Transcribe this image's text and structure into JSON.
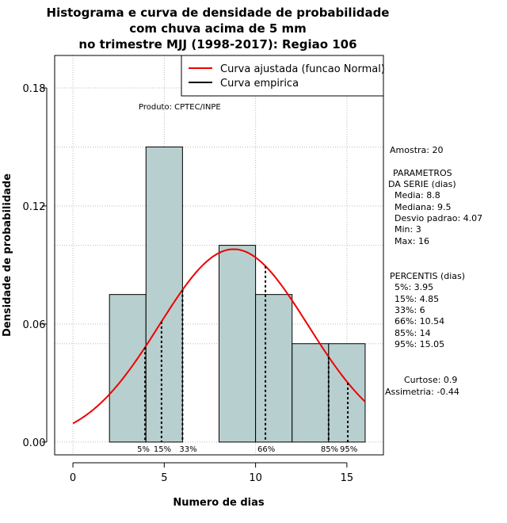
{
  "chart_data": {
    "type": "histogram",
    "title_lines": [
      "Histograma e curva de densidade de probabilidade",
      "com chuva acima de 5 mm",
      "no trimestre MJJ (1998-2017): Regiao 106"
    ],
    "xlabel": "Numero de dias",
    "ylabel": "Densidade de probabilidade",
    "xlim": [
      -1,
      17
    ],
    "ylim": [
      -0.0065,
      0.1965
    ],
    "x_ticks": [
      0,
      5,
      10,
      15
    ],
    "y_ticks": [
      0.0,
      0.06,
      0.12,
      0.18
    ],
    "y_tick_labels": [
      "0.00",
      "0.06",
      "0.12",
      "0.18"
    ],
    "bins": [
      {
        "start": 2,
        "end": 4,
        "density": 0.075
      },
      {
        "start": 4,
        "end": 6,
        "density": 0.15
      },
      {
        "start": 6,
        "end": 8,
        "density": 0.0
      },
      {
        "start": 8,
        "end": 10,
        "density": 0.1
      },
      {
        "start": 10,
        "end": 12,
        "density": 0.075
      },
      {
        "start": 12,
        "end": 14,
        "density": 0.05
      },
      {
        "start": 14,
        "end": 16,
        "density": 0.05
      }
    ],
    "bar_color": "#b8cfcf",
    "curve": {
      "type": "normal",
      "mean": 8.8,
      "sd": 4.07,
      "x_from": 0,
      "x_to": 16,
      "color": "#ee0000"
    },
    "grid": true,
    "grid_y_extra": [
      0.05,
      0.1,
      0.15
    ],
    "percentile_lines": [
      {
        "label": "5%",
        "x": 3.95
      },
      {
        "label": "15%",
        "x": 4.85
      },
      {
        "label": "33%",
        "x": 6
      },
      {
        "label": "66%",
        "x": 10.54
      },
      {
        "label": "85%",
        "x": 14
      },
      {
        "label": "95%",
        "x": 15.05
      }
    ],
    "legend": {
      "position": "top-right",
      "entries": [
        {
          "label": "Curva ajustada (funcao Normal)",
          "color": "#ee0000"
        },
        {
          "label": "Curva empirica",
          "color": "#000000"
        }
      ]
    },
    "annotation": "Produto: CPTEC/INPE",
    "stats": {
      "amostra": "Amostra: 20",
      "param_title_1": "PARAMETROS",
      "param_title_2": "DA SERIE (dias)",
      "media": "Media: 8.8",
      "mediana": "Mediana: 9.5",
      "desvio": "Desvio padrao: 4.07",
      "min": "Min: 3",
      "max": "Max: 16",
      "percentis_title": "PERCENTIS (dias)",
      "p5": "5%: 3.95",
      "p15": "15%: 4.85",
      "p33": "33%: 6",
      "p66": "66%: 10.54",
      "p85": "85%: 14",
      "p95": "95%: 15.05",
      "curtose": "Curtose: 0.9",
      "assimetria": "Assimetria: -0.44"
    }
  }
}
